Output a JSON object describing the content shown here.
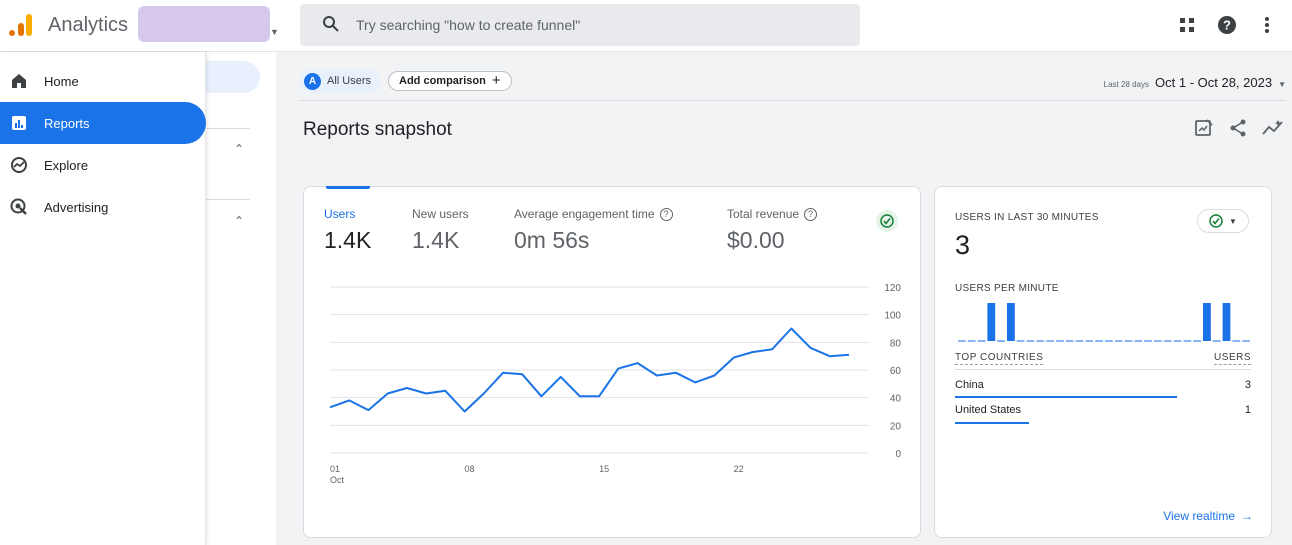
{
  "app": {
    "title": "Analytics"
  },
  "search": {
    "placeholder": "Try searching \"how to create funnel\""
  },
  "sidebar": {
    "items": [
      {
        "label": "Home",
        "icon": "home-icon"
      },
      {
        "label": "Reports",
        "icon": "reports-icon",
        "active": true
      },
      {
        "label": "Explore",
        "icon": "explore-icon"
      },
      {
        "label": "Advertising",
        "icon": "advertising-icon"
      }
    ]
  },
  "comparison": {
    "all_users_badge": "A",
    "all_users": "All Users",
    "add_comparison": "Add comparison"
  },
  "daterange": {
    "prefix": "Last 28 days",
    "value": "Oct 1 - Oct 28, 2023"
  },
  "page": {
    "title": "Reports snapshot"
  },
  "metrics": [
    {
      "label": "Users",
      "value": "1.4K",
      "selected": true
    },
    {
      "label": "New users",
      "value": "1.4K"
    },
    {
      "label": "Average engagement time",
      "value": "0m 56s",
      "help": true
    },
    {
      "label": "Total revenue",
      "value": "$0.00",
      "help": true
    }
  ],
  "chart_data": {
    "type": "line",
    "x": [
      1,
      2,
      3,
      4,
      5,
      6,
      7,
      8,
      9,
      10,
      11,
      12,
      13,
      14,
      15,
      16,
      17,
      18,
      19,
      20,
      21,
      22,
      23,
      24,
      25,
      26,
      27,
      28
    ],
    "series": [
      {
        "values": [
          33,
          38,
          31,
          43,
          47,
          43,
          45,
          30,
          43,
          58,
          57,
          41,
          55,
          41,
          41,
          61,
          65,
          56,
          58,
          51,
          56,
          69,
          73,
          75,
          90,
          76,
          70,
          71
        ]
      }
    ],
    "x_ticks": [
      {
        "x": 1,
        "label": "01",
        "sublabel": "Oct"
      },
      {
        "x": 8,
        "label": "08"
      },
      {
        "x": 15,
        "label": "15"
      },
      {
        "x": 22,
        "label": "22"
      }
    ],
    "y_ticks": [
      "120",
      "100",
      "80",
      "60",
      "40",
      "20",
      "0"
    ],
    "y_tick_values": [
      120,
      100,
      80,
      60,
      40,
      20,
      0
    ],
    "ylim": [
      0,
      120
    ],
    "grid": true,
    "color": "#1a73e8"
  },
  "realtime": {
    "title": "USERS IN LAST 30 MINUTES",
    "value": "3",
    "per_minute_label": "USERS PER MINUTE",
    "per_minute": [
      0,
      0,
      0,
      1,
      0,
      1,
      0,
      0,
      0,
      0,
      0,
      0,
      0,
      0,
      0,
      0,
      0,
      0,
      0,
      0,
      0,
      0,
      0,
      0,
      0,
      1,
      0,
      1,
      0,
      0
    ],
    "countries_header": "TOP COUNTRIES",
    "users_header": "USERS",
    "countries": [
      {
        "name": "China",
        "users": "3",
        "share": 1.0
      },
      {
        "name": "United States",
        "users": "1",
        "share": 0.333
      }
    ],
    "view_link": "View realtime"
  },
  "colors": {
    "accent": "#1a73e8",
    "success": "#188038",
    "logo_orange": "#f9ab00",
    "logo_dark": "#e37400"
  }
}
